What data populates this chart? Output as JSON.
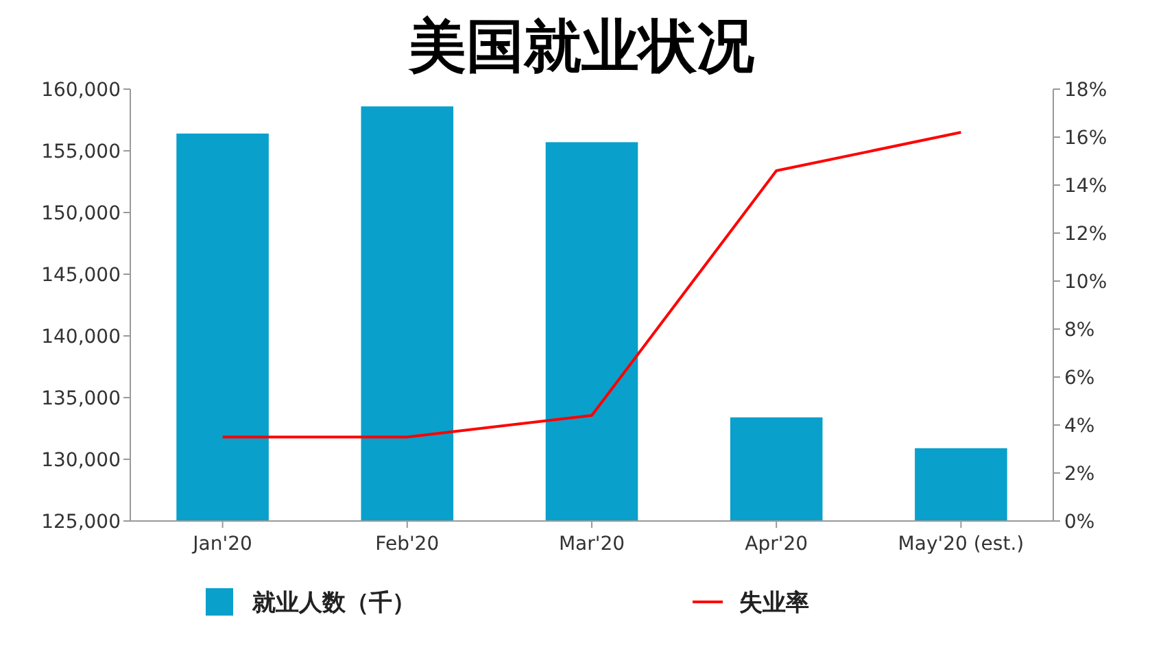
{
  "chart_data": {
    "type": "bar",
    "title": "美国就业状况",
    "categories": [
      "Jan'20",
      "Feb'20",
      "Mar'20",
      "Apr'20",
      "May'20 (est.)"
    ],
    "series": [
      {
        "name": "就业人数（千）",
        "color": "#0aa0cc",
        "values": [
          156400,
          158600,
          155700,
          133400,
          130900
        ]
      },
      {
        "name": "失业率",
        "type": "line",
        "axis": "y2",
        "color": "#ff0000",
        "values": [
          3.5,
          3.5,
          4.4,
          14.6,
          16.2
        ]
      }
    ],
    "ylim": [
      125000,
      160000
    ],
    "yticks": [
      {
        "value": 125000,
        "label": "125,000"
      },
      {
        "value": 130000,
        "label": "130,000"
      },
      {
        "value": 135000,
        "label": "135,000"
      },
      {
        "value": 140000,
        "label": "140,000"
      },
      {
        "value": 145000,
        "label": "145,000"
      },
      {
        "value": 150000,
        "label": "150,000"
      },
      {
        "value": 155000,
        "label": "155,000"
      },
      {
        "value": 160000,
        "label": "160,000"
      }
    ],
    "y2lim": [
      0,
      18
    ],
    "y2ticks": [
      {
        "value": 0,
        "label": "0%"
      },
      {
        "value": 2,
        "label": "2%"
      },
      {
        "value": 4,
        "label": "4%"
      },
      {
        "value": 6,
        "label": "6%"
      },
      {
        "value": 8,
        "label": "8%"
      },
      {
        "value": 10,
        "label": "10%"
      },
      {
        "value": 12,
        "label": "12%"
      },
      {
        "value": 14,
        "label": "14%"
      },
      {
        "value": 16,
        "label": "16%"
      },
      {
        "value": 18,
        "label": "18%"
      }
    ],
    "grid": false,
    "legend": "bottom",
    "marker": "none"
  }
}
